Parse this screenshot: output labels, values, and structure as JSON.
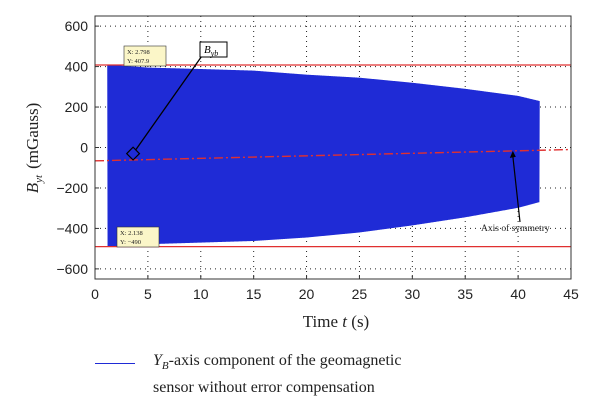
{
  "chart_data": {
    "type": "line",
    "title": "",
    "xlabel": "Time t (s)",
    "ylabel": "B_yt (mGauss)",
    "xlim": [
      0,
      45
    ],
    "ylim": [
      -650,
      650
    ],
    "xticks": [
      0,
      5,
      10,
      15,
      20,
      25,
      30,
      35,
      40,
      45
    ],
    "yticks": [
      600,
      400,
      200,
      0,
      -200,
      -400,
      -600
    ],
    "grid": "dotted",
    "colors": {
      "signal": "#1f2bd6",
      "reference": "#e03030"
    },
    "series": [
      {
        "name": "Y_B-axis component of the geomagnetic sensor without error compensation",
        "kind": "oscillation-envelope",
        "t_start": 1.2,
        "t_end": 42.0,
        "upper": [
          [
            1.2,
            410
          ],
          [
            5,
            395
          ],
          [
            10,
            388
          ],
          [
            15,
            380
          ],
          [
            20,
            360
          ],
          [
            25,
            345
          ],
          [
            30,
            320
          ],
          [
            35,
            290
          ],
          [
            40,
            255
          ],
          [
            42,
            230
          ]
        ],
        "lower": [
          [
            1.2,
            -490
          ],
          [
            5,
            -478
          ],
          [
            10,
            -470
          ],
          [
            15,
            -462
          ],
          [
            20,
            -445
          ],
          [
            25,
            -420
          ],
          [
            30,
            -385
          ],
          [
            35,
            -345
          ],
          [
            40,
            -298
          ],
          [
            42,
            -270
          ]
        ]
      }
    ],
    "reference_lines": [
      {
        "y": 407.9,
        "style": "solid"
      },
      {
        "y": -490,
        "style": "solid"
      }
    ],
    "symmetry_axis": {
      "points": [
        [
          0,
          -66
        ],
        [
          45,
          -10
        ]
      ],
      "style": "dash-dot"
    },
    "datatips": [
      {
        "x_label": "X: 2.798",
        "y_label": "Y: 407.9"
      },
      {
        "x_label": "X: 2.138",
        "y_label": "Y: −490"
      }
    ],
    "annotations": [
      {
        "text": "B_yb",
        "points_to": [
          3.6,
          -30
        ]
      },
      {
        "text": "Axis of symmetry",
        "points_to": [
          39.5,
          -12
        ]
      }
    ]
  },
  "labels": {
    "y_main": "B",
    "y_sub": "yt",
    "y_unit": "(mGauss)",
    "x_main": "Time ",
    "x_var": "t",
    "x_unit": " (s)",
    "byb_main": "B",
    "byb_sub": "yb",
    "symmetry": "Axis of symmetry",
    "tip1_x": "X: 2.798",
    "tip1_y": "Y: 407.9",
    "tip2_x": "X: 2.138",
    "tip2_y": "Y: −490"
  },
  "legend": {
    "var_main": "Y",
    "var_sub": "B",
    "text_rest": "-axis component of the geomagnetic sensor without error compensation"
  }
}
